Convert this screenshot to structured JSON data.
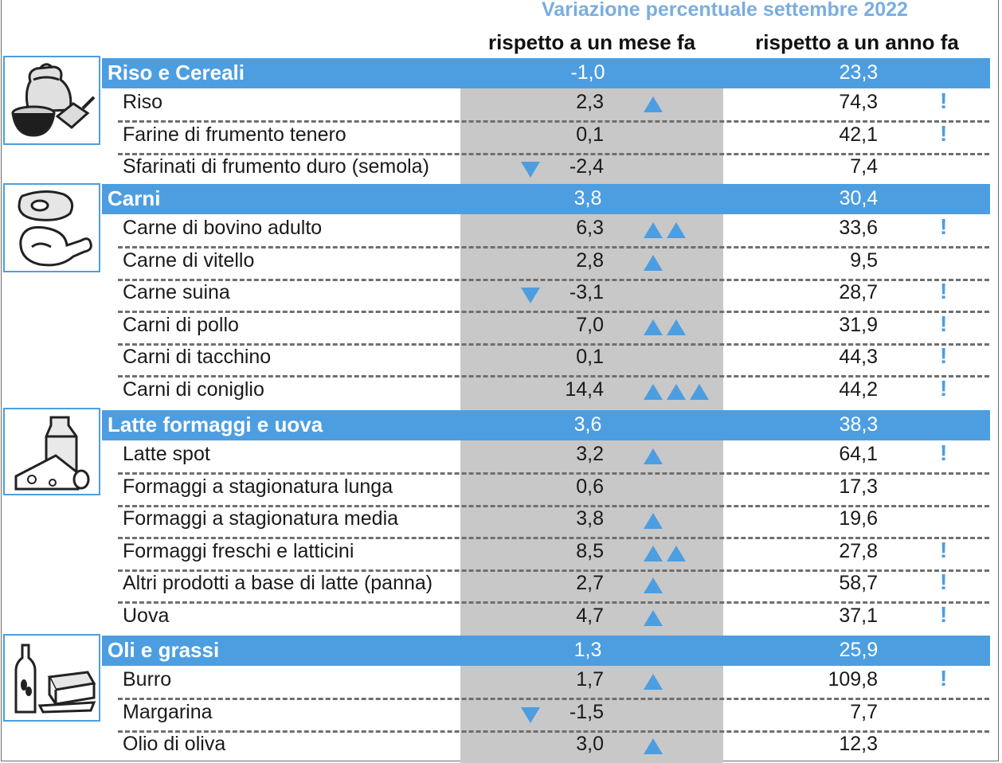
{
  "header": {
    "title": "Variazione percentuale settembre 2022",
    "col_month": "rispetto a un mese fa",
    "col_year": "rispetto a un anno fa"
  },
  "colors": {
    "accent": "#4d9ee0",
    "gray_column": "#c8c8c8",
    "title": "#79aee0"
  },
  "categories": [
    {
      "name": "Riso e Cereali",
      "month": "-1,0",
      "year": "23,3",
      "icon": "grain-sack-icon",
      "items": [
        {
          "name": "Riso",
          "month": "2,3",
          "year": "74,3",
          "up": 1,
          "down": false,
          "alert": true
        },
        {
          "name": "Farine di frumento tenero",
          "month": "0,1",
          "year": "42,1",
          "up": 0,
          "down": false,
          "alert": true
        },
        {
          "name": "Sfarinati di frumento duro (semola)",
          "month": "-2,4",
          "year": "7,4",
          "up": 0,
          "down": true,
          "alert": false
        }
      ]
    },
    {
      "name": "Carni",
      "month": "3,8",
      "year": "30,4",
      "icon": "meat-icon",
      "items": [
        {
          "name": "Carne di bovino adulto",
          "month": "6,3",
          "year": "33,6",
          "up": 2,
          "down": false,
          "alert": true
        },
        {
          "name": "Carne di vitello",
          "month": "2,8",
          "year": "9,5",
          "up": 1,
          "down": false,
          "alert": false
        },
        {
          "name": "Carne suina",
          "month": "-3,1",
          "year": "28,7",
          "up": 0,
          "down": true,
          "alert": true
        },
        {
          "name": "Carni di pollo",
          "month": "7,0",
          "year": "31,9",
          "up": 2,
          "down": false,
          "alert": true
        },
        {
          "name": "Carni di tacchino",
          "month": "0,1",
          "year": "44,3",
          "up": 0,
          "down": false,
          "alert": true
        },
        {
          "name": "Carni di coniglio",
          "month": "14,4",
          "year": "44,2",
          "up": 3,
          "down": false,
          "alert": true
        }
      ]
    },
    {
      "name": "Latte formaggi e uova",
      "month": "3,6",
      "year": "38,3",
      "icon": "dairy-icon",
      "items": [
        {
          "name": "Latte spot",
          "month": "3,2",
          "year": "64,1",
          "up": 1,
          "down": false,
          "alert": true
        },
        {
          "name": "Formaggi a stagionatura lunga",
          "month": "0,6",
          "year": "17,3",
          "up": 0,
          "down": false,
          "alert": false
        },
        {
          "name": "Formaggi a stagionatura media",
          "month": "3,8",
          "year": "19,6",
          "up": 1,
          "down": false,
          "alert": false
        },
        {
          "name": "Formaggi freschi e latticini",
          "month": "8,5",
          "year": "27,8",
          "up": 2,
          "down": false,
          "alert": true
        },
        {
          "name": "Altri prodotti a base di latte (panna)",
          "month": "2,7",
          "year": "58,7",
          "up": 1,
          "down": false,
          "alert": true
        },
        {
          "name": "Uova",
          "month": "4,7",
          "year": "37,1",
          "up": 1,
          "down": false,
          "alert": true
        }
      ]
    },
    {
      "name": "Oli e grassi",
      "month": "1,3",
      "year": "25,9",
      "icon": "oil-butter-icon",
      "items": [
        {
          "name": "Burro",
          "month": "1,7",
          "year": "109,8",
          "up": 1,
          "down": false,
          "alert": true
        },
        {
          "name": "Margarina",
          "month": "-1,5",
          "year": "7,7",
          "up": 0,
          "down": true,
          "alert": false
        },
        {
          "name": "Olio di oliva",
          "month": "3,0",
          "year": "12,3",
          "up": 1,
          "down": false,
          "alert": false
        }
      ]
    }
  ],
  "alert_glyph": "!"
}
